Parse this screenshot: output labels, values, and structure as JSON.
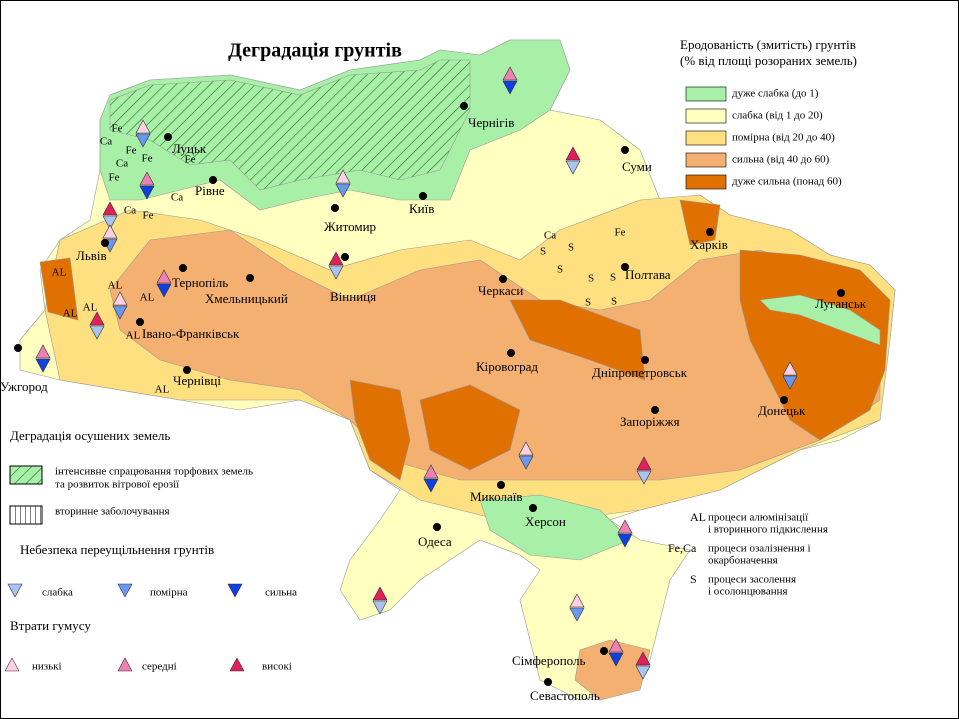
{
  "title": "Деградація грунтів",
  "erosion_legend": {
    "title_lines": [
      "Еродованість (змитість) грунтів",
      "(% від площі розораних земель)"
    ],
    "items": [
      {
        "label": "дуже слабка (до 1)",
        "color": "#a8f0a8"
      },
      {
        "label": "слабка (від 1 до 20)",
        "color": "#ffffc0"
      },
      {
        "label": "помірна (від 20 до 40)",
        "color": "#ffe080"
      },
      {
        "label": "сильна (від 40 до 60)",
        "color": "#f4b070"
      },
      {
        "label": "дуже сильна (понад 60)",
        "color": "#e07000"
      }
    ]
  },
  "drained_legend": {
    "title": "Деградація осушених земель",
    "items": [
      {
        "lines": [
          "інтенсивне спрацювання торфових земель",
          "та розвиток вітрової ерозії"
        ]
      },
      {
        "lines": [
          "вторинне заболочування"
        ]
      }
    ]
  },
  "compaction_legend": {
    "title": "Небезпека переущільнення грунтів",
    "items": [
      {
        "label": "слабка",
        "color": "#a8c4f4"
      },
      {
        "label": "помірна",
        "color": "#6a98f0"
      },
      {
        "label": "сильна",
        "color": "#1040e0"
      }
    ]
  },
  "humus_legend": {
    "title": "Втрати гумусу",
    "items": [
      {
        "label": "низькі",
        "color": "#ffd0e4"
      },
      {
        "label": "середні",
        "color": "#f080b4"
      },
      {
        "label": "високі",
        "color": "#e0205c"
      }
    ]
  },
  "process_legend": [
    {
      "code": "AL",
      "lines": [
        "процеси алюмінізації",
        "і вторинного підкислення"
      ]
    },
    {
      "code": "Fe,Ca",
      "lines": [
        "процеси озалізнення і",
        "окарбоначення"
      ]
    },
    {
      "code": "S",
      "lines": [
        "процеси засолення",
        "і осолонцювання"
      ]
    }
  ],
  "cities": [
    "Луцьк",
    "Рівне",
    "Львів",
    "Тернопіль",
    "Хмельницький",
    "Івано-Франківськ",
    "Чернівці",
    "Ужгород",
    "Житомир",
    "Вінниця",
    "Київ",
    "Чернігів",
    "Суми",
    "Харків",
    "Полтава",
    "Черкаси",
    "Кіровоград",
    "Дніпропетровськ",
    "Запоріжжя",
    "Луганськ",
    "Донецьк",
    "Миколаїв",
    "Херсон",
    "Одеса",
    "Сімферополь",
    "Севастополь"
  ],
  "map_codes": [
    "Fe",
    "Ca",
    "Fe",
    "Ca",
    "Fe",
    "Fe",
    "Fe",
    "Ca",
    "Ca",
    "Fe",
    "AL",
    "AL",
    "AL",
    "AL",
    "AL",
    "AL",
    "AL",
    "Ca",
    "S",
    "S",
    "S",
    "S",
    "S",
    "S",
    "S",
    "Fe"
  ]
}
